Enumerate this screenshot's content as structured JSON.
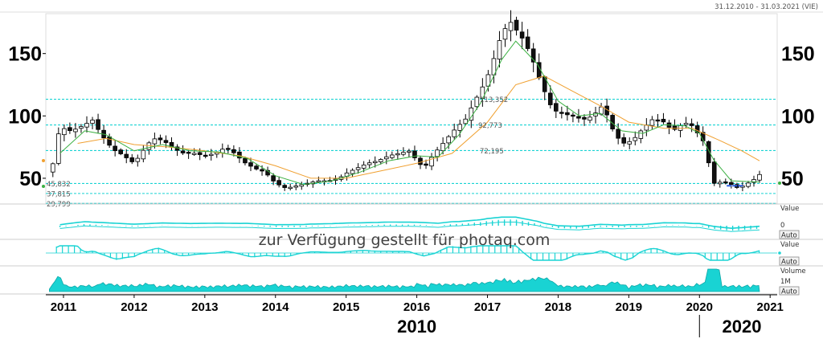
{
  "header": {
    "date_range": "31.12.2010 - 31.03.2021 (VIE)"
  },
  "watermark": "zur Verfügung gestellt für photaq.com",
  "colors": {
    "accent": "#19d3d3",
    "sma_short": "#3cb043",
    "sma_long": "#f0a030",
    "level_line": "#19d3d3"
  },
  "chart_data": {
    "type": "candlestick",
    "x_range": [
      2010.75,
      2021.1
    ],
    "ylim": [
      30,
      182
    ],
    "y_ticks": [
      50,
      100,
      150
    ],
    "x_ticks": [
      "2011",
      "2012",
      "2013",
      "2014",
      "2015",
      "2016",
      "2017",
      "2018",
      "2019",
      "2020",
      "2021"
    ],
    "decade_labels": [
      "2010",
      "2020"
    ],
    "levels": [
      {
        "value": 113.352,
        "label": "113,352"
      },
      {
        "value": 92.773,
        "label": "92,773"
      },
      {
        "value": 72.195,
        "label": "72,195"
      },
      {
        "value": 45.832,
        "label": "45,832"
      },
      {
        "value": 37.815,
        "label": "37,815"
      },
      {
        "value": 29.799,
        "label": "29,799"
      }
    ],
    "price_curve": [
      [
        2010.83,
        55
      ],
      [
        2010.92,
        85
      ],
      [
        2011.0,
        90
      ],
      [
        2011.1,
        88
      ],
      [
        2011.2,
        90
      ],
      [
        2011.3,
        93
      ],
      [
        2011.42,
        97
      ],
      [
        2011.5,
        88
      ],
      [
        2011.6,
        80
      ],
      [
        2011.7,
        73
      ],
      [
        2011.8,
        70
      ],
      [
        2011.9,
        66
      ],
      [
        2012.0,
        62
      ],
      [
        2012.1,
        70
      ],
      [
        2012.2,
        78
      ],
      [
        2012.3,
        82
      ],
      [
        2012.42,
        80
      ],
      [
        2012.55,
        74
      ],
      [
        2012.7,
        70
      ],
      [
        2012.85,
        70
      ],
      [
        2013.0,
        68
      ],
      [
        2013.15,
        70
      ],
      [
        2013.3,
        75
      ],
      [
        2013.42,
        70
      ],
      [
        2013.55,
        63
      ],
      [
        2013.7,
        58
      ],
      [
        2013.85,
        55
      ],
      [
        2014.0,
        46
      ],
      [
        2014.15,
        42
      ],
      [
        2014.3,
        44
      ],
      [
        2014.45,
        46
      ],
      [
        2014.6,
        48
      ],
      [
        2014.75,
        48
      ],
      [
        2014.9,
        50
      ],
      [
        2015.0,
        54
      ],
      [
        2015.15,
        58
      ],
      [
        2015.3,
        62
      ],
      [
        2015.45,
        64
      ],
      [
        2015.6,
        68
      ],
      [
        2015.75,
        70
      ],
      [
        2015.9,
        72
      ],
      [
        2016.0,
        64
      ],
      [
        2016.1,
        58
      ],
      [
        2016.25,
        70
      ],
      [
        2016.4,
        80
      ],
      [
        2016.55,
        90
      ],
      [
        2016.7,
        98
      ],
      [
        2016.8,
        110
      ],
      [
        2016.92,
        122
      ],
      [
        2017.05,
        138
      ],
      [
        2017.15,
        158
      ],
      [
        2017.25,
        170
      ],
      [
        2017.33,
        175
      ],
      [
        2017.42,
        168
      ],
      [
        2017.52,
        160
      ],
      [
        2017.62,
        148
      ],
      [
        2017.72,
        132
      ],
      [
        2017.82,
        118
      ],
      [
        2017.92,
        105
      ],
      [
        2018.05,
        102
      ],
      [
        2018.2,
        100
      ],
      [
        2018.35,
        97
      ],
      [
        2018.5,
        100
      ],
      [
        2018.6,
        108
      ],
      [
        2018.7,
        100
      ],
      [
        2018.8,
        85
      ],
      [
        2018.92,
        78
      ],
      [
        2019.05,
        80
      ],
      [
        2019.2,
        90
      ],
      [
        2019.35,
        98
      ],
      [
        2019.5,
        95
      ],
      [
        2019.62,
        88
      ],
      [
        2019.72,
        92
      ],
      [
        2019.85,
        95
      ],
      [
        2019.95,
        88
      ],
      [
        2020.05,
        80
      ],
      [
        2020.15,
        58
      ],
      [
        2020.22,
        44
      ],
      [
        2020.32,
        48
      ],
      [
        2020.45,
        45
      ],
      [
        2020.55,
        42
      ],
      [
        2020.65,
        45
      ],
      [
        2020.75,
        48
      ],
      [
        2020.85,
        53
      ]
    ],
    "sma_short": [
      [
        2010.95,
        70
      ],
      [
        2011.3,
        88
      ],
      [
        2011.6,
        85
      ],
      [
        2012.0,
        72
      ],
      [
        2012.4,
        77
      ],
      [
        2012.8,
        72
      ],
      [
        2013.2,
        71
      ],
      [
        2013.6,
        66
      ],
      [
        2014.0,
        52
      ],
      [
        2014.4,
        45
      ],
      [
        2014.8,
        48
      ],
      [
        2015.2,
        55
      ],
      [
        2015.6,
        64
      ],
      [
        2016.0,
        68
      ],
      [
        2016.3,
        67
      ],
      [
        2016.6,
        85
      ],
      [
        2016.9,
        110
      ],
      [
        2017.2,
        145
      ],
      [
        2017.4,
        160
      ],
      [
        2017.7,
        142
      ],
      [
        2018.0,
        112
      ],
      [
        2018.3,
        100
      ],
      [
        2018.6,
        102
      ],
      [
        2018.9,
        88
      ],
      [
        2019.2,
        86
      ],
      [
        2019.5,
        93
      ],
      [
        2019.8,
        92
      ],
      [
        2020.0,
        86
      ],
      [
        2020.2,
        65
      ],
      [
        2020.45,
        48
      ],
      [
        2020.85,
        47
      ]
    ],
    "sma_long": [
      [
        2011.2,
        78
      ],
      [
        2011.6,
        82
      ],
      [
        2012.0,
        77
      ],
      [
        2012.5,
        75
      ],
      [
        2013.0,
        72
      ],
      [
        2013.5,
        68
      ],
      [
        2014.0,
        60
      ],
      [
        2014.5,
        50
      ],
      [
        2015.0,
        50
      ],
      [
        2015.5,
        56
      ],
      [
        2016.0,
        62
      ],
      [
        2016.5,
        70
      ],
      [
        2017.0,
        95
      ],
      [
        2017.4,
        125
      ],
      [
        2017.8,
        132
      ],
      [
        2018.2,
        120
      ],
      [
        2018.6,
        108
      ],
      [
        2019.0,
        95
      ],
      [
        2019.5,
        90
      ],
      [
        2019.9,
        90
      ],
      [
        2020.3,
        80
      ],
      [
        2020.6,
        72
      ],
      [
        2020.85,
        64
      ]
    ],
    "panels": [
      {
        "name": "macd",
        "label": "Value",
        "zero_label": "0",
        "button": "Auto"
      },
      {
        "name": "oscillator",
        "label": "Value",
        "button": "Auto"
      },
      {
        "name": "volume",
        "label": "Volume",
        "unit_label": "1M",
        "button": "Auto"
      }
    ]
  }
}
